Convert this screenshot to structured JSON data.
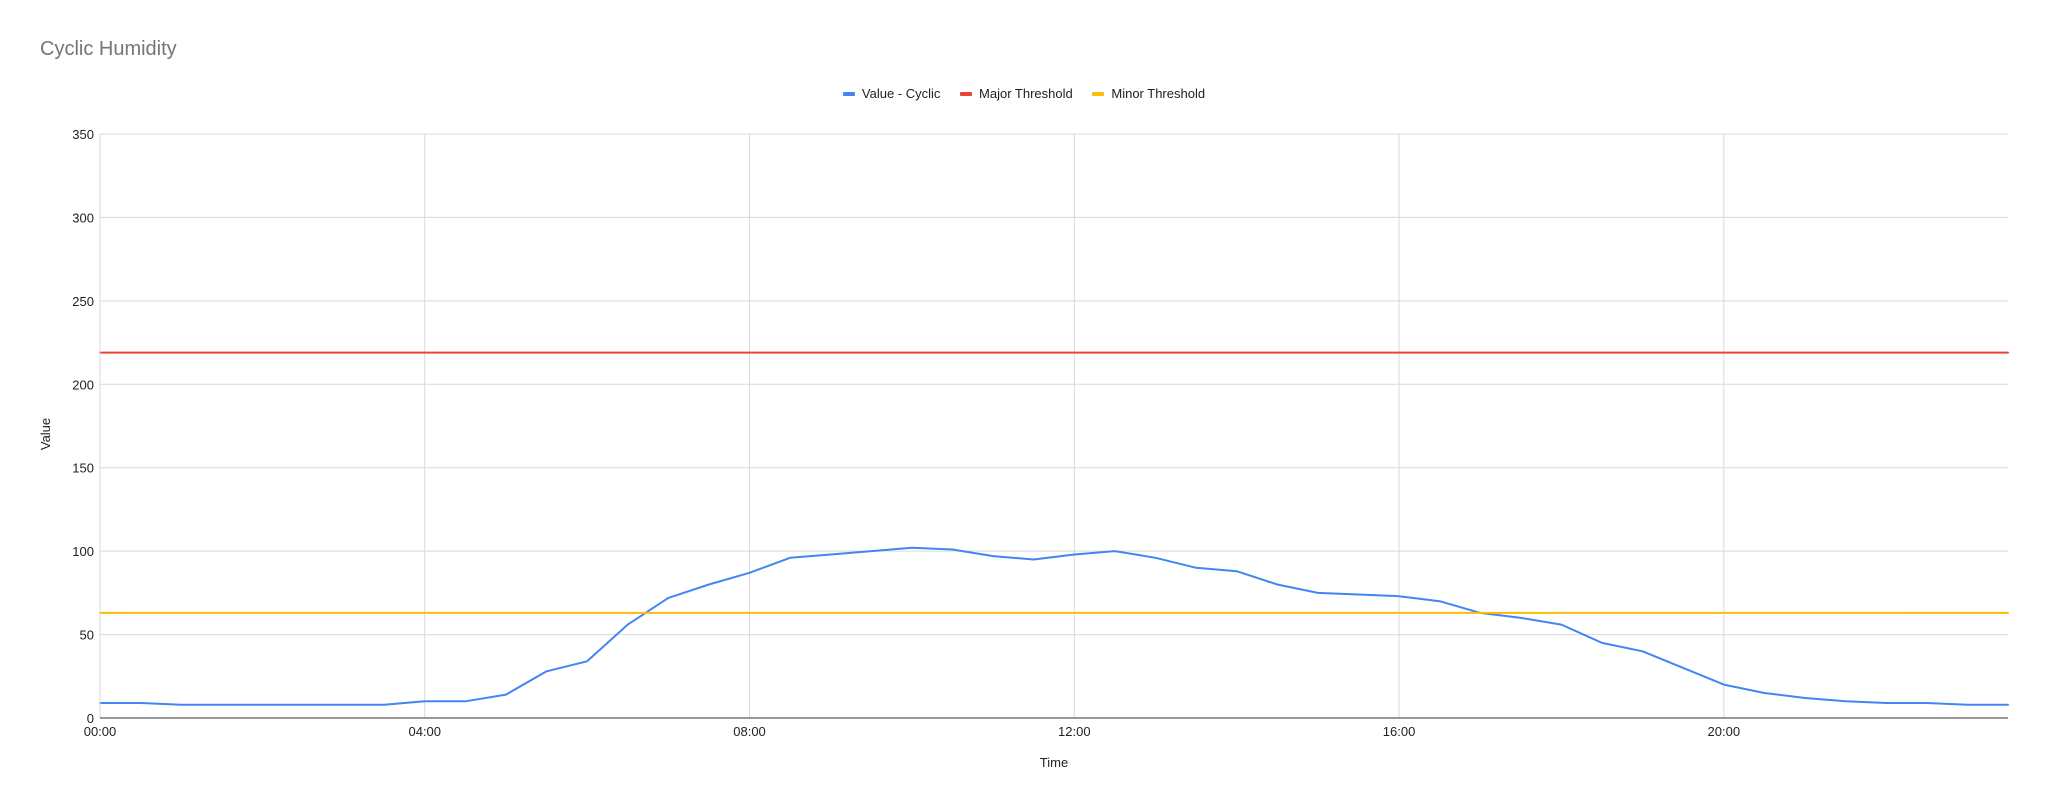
{
  "chart_data": {
    "type": "line",
    "title": "Cyclic Humidity",
    "xlabel": "Time",
    "ylabel": "Value",
    "ylim": [
      0,
      350
    ],
    "xlim": [
      "00:00",
      "23:30"
    ],
    "yticks": [
      "0",
      "50",
      "100",
      "150",
      "200",
      "250",
      "300",
      "350"
    ],
    "xticks": [
      "00:00",
      "04:00",
      "08:00",
      "12:00",
      "16:00",
      "20:00"
    ],
    "grid": true,
    "legend_position": "top",
    "x": [
      "00:00",
      "00:30",
      "01:00",
      "01:30",
      "02:00",
      "02:30",
      "03:00",
      "03:30",
      "04:00",
      "04:30",
      "05:00",
      "05:30",
      "06:00",
      "06:30",
      "07:00",
      "07:30",
      "08:00",
      "08:30",
      "09:00",
      "09:30",
      "10:00",
      "10:30",
      "11:00",
      "11:30",
      "12:00",
      "12:30",
      "13:00",
      "13:30",
      "14:00",
      "14:30",
      "15:00",
      "15:30",
      "16:00",
      "16:30",
      "17:00",
      "17:30",
      "18:00",
      "18:30",
      "19:00",
      "19:30",
      "20:00",
      "20:30",
      "21:00",
      "21:30",
      "22:00",
      "22:30",
      "23:00",
      "23:30"
    ],
    "series": [
      {
        "name": "Value - Cyclic",
        "color": "#4285f4",
        "values": [
          9,
          9,
          8,
          8,
          8,
          8,
          8,
          8,
          10,
          10,
          14,
          28,
          34,
          56,
          72,
          80,
          87,
          96,
          98,
          100,
          102,
          101,
          97,
          95,
          98,
          100,
          96,
          90,
          88,
          80,
          75,
          74,
          73,
          70,
          63,
          60,
          56,
          45,
          40,
          30,
          20,
          15,
          12,
          10,
          9,
          9,
          8,
          8
        ]
      },
      {
        "name": "Major Threshold",
        "color": "#ea4335",
        "values": [
          219,
          219,
          219,
          219,
          219,
          219,
          219,
          219,
          219,
          219,
          219,
          219,
          219,
          219,
          219,
          219,
          219,
          219,
          219,
          219,
          219,
          219,
          219,
          219,
          219,
          219,
          219,
          219,
          219,
          219,
          219,
          219,
          219,
          219,
          219,
          219,
          219,
          219,
          219,
          219,
          219,
          219,
          219,
          219,
          219,
          219,
          219,
          219
        ]
      },
      {
        "name": "Minor Threshold",
        "color": "#fbbc04",
        "values": [
          63,
          63,
          63,
          63,
          63,
          63,
          63,
          63,
          63,
          63,
          63,
          63,
          63,
          63,
          63,
          63,
          63,
          63,
          63,
          63,
          63,
          63,
          63,
          63,
          63,
          63,
          63,
          63,
          63,
          63,
          63,
          63,
          63,
          63,
          63,
          63,
          63,
          63,
          63,
          63,
          63,
          63,
          63,
          63,
          63,
          63,
          63,
          63
        ]
      }
    ]
  }
}
